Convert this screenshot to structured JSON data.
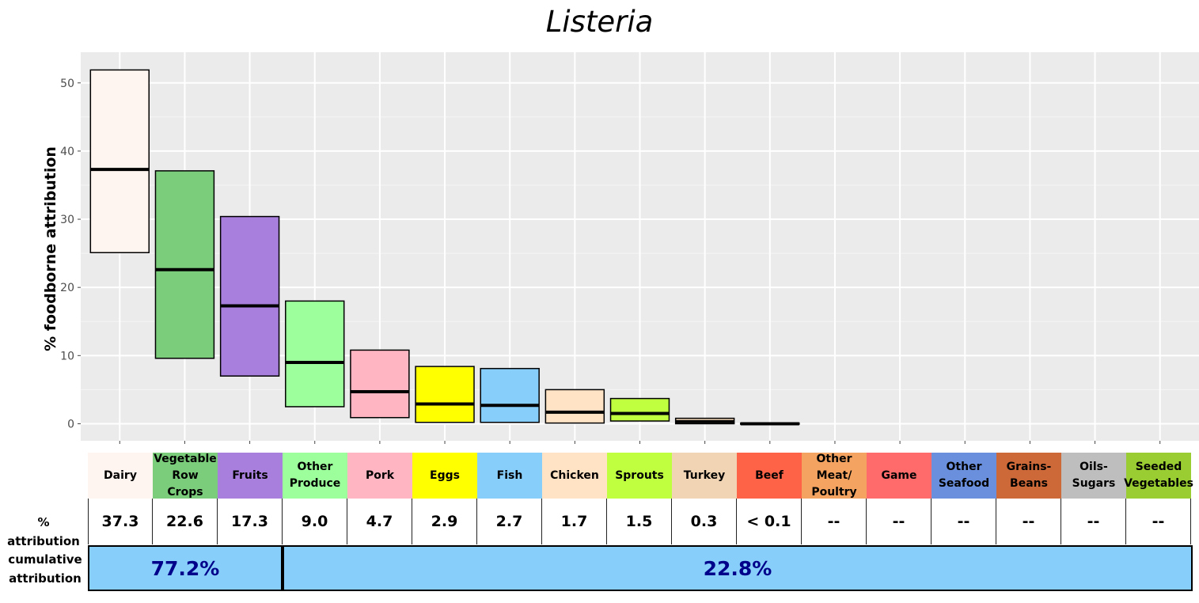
{
  "chart_data": {
    "type": "box",
    "title": "Listeria",
    "ylabel": "% foodborne attribution",
    "xlabel": "",
    "ylim": [
      -2.5,
      54.5
    ],
    "yticks": [
      0,
      10,
      20,
      30,
      40,
      50
    ],
    "grid": true,
    "categories": [
      "Dairy",
      "Vegetable Row Crops",
      "Fruits",
      "Other Produce",
      "Pork",
      "Eggs",
      "Fish",
      "Chicken",
      "Sprouts",
      "Turkey",
      "Beef",
      "Other Meat/ Poultry",
      "Game",
      "Other Seafood",
      "Grains-Beans",
      "Oils-Sugars",
      "Seeded Vegetables"
    ],
    "category_labels": [
      "Dairy",
      "Vegetable\nRow\nCrops",
      "Fruits",
      "Other\nProduce",
      "Pork",
      "Eggs",
      "Fish",
      "Chicken",
      "Sprouts",
      "Turkey",
      "Beef",
      "Other\nMeat/\nPoultry",
      "Game",
      "Other\nSeafood",
      "Grains-\nBeans",
      "Oils-\nSugars",
      "Seeded\nVegetables"
    ],
    "colors": [
      "#fff5f0",
      "#7bcd7b",
      "#a87fdc",
      "#9cff9c",
      "#ffb5c2",
      "#ffff00",
      "#87cefa",
      "#ffe3c4",
      "#bfff3f",
      "#f0d4b4",
      "#ff6347",
      "#f4a460",
      "#ff6a6a",
      "#6a8fdc",
      "#cd6839",
      "#bebebe",
      "#9acd32"
    ],
    "boxes": [
      {
        "low": 25.1,
        "mid": 37.3,
        "high": 51.9
      },
      {
        "low": 9.6,
        "mid": 22.6,
        "high": 37.1
      },
      {
        "low": 7.0,
        "mid": 17.3,
        "high": 30.4
      },
      {
        "low": 2.5,
        "mid": 9.0,
        "high": 18.0
      },
      {
        "low": 0.9,
        "mid": 4.7,
        "high": 10.8
      },
      {
        "low": 0.2,
        "mid": 2.9,
        "high": 8.4
      },
      {
        "low": 0.2,
        "mid": 2.7,
        "high": 8.1
      },
      {
        "low": 0.1,
        "mid": 1.7,
        "high": 5.0
      },
      {
        "low": 0.4,
        "mid": 1.5,
        "high": 3.7
      },
      {
        "low": 0.0,
        "mid": 0.3,
        "high": 0.8
      },
      {
        "low": 0.0,
        "mid": 0.0,
        "high": 0.1
      },
      null,
      null,
      null,
      null,
      null,
      null
    ],
    "attribution_row_label": "% attribution",
    "attribution_values": [
      "37.3",
      "22.6",
      "17.3",
      "9.0",
      "4.7",
      "2.9",
      "2.7",
      "1.7",
      "1.5",
      "0.3",
      "< 0.1",
      "--",
      "--",
      "--",
      "--",
      "--",
      "--"
    ],
    "cumulative_row_label": "cumulative\nattribution",
    "cumulative": [
      {
        "label": "77.2%",
        "span_categories": 3
      },
      {
        "label": "22.8%",
        "span_categories": 14
      }
    ]
  }
}
